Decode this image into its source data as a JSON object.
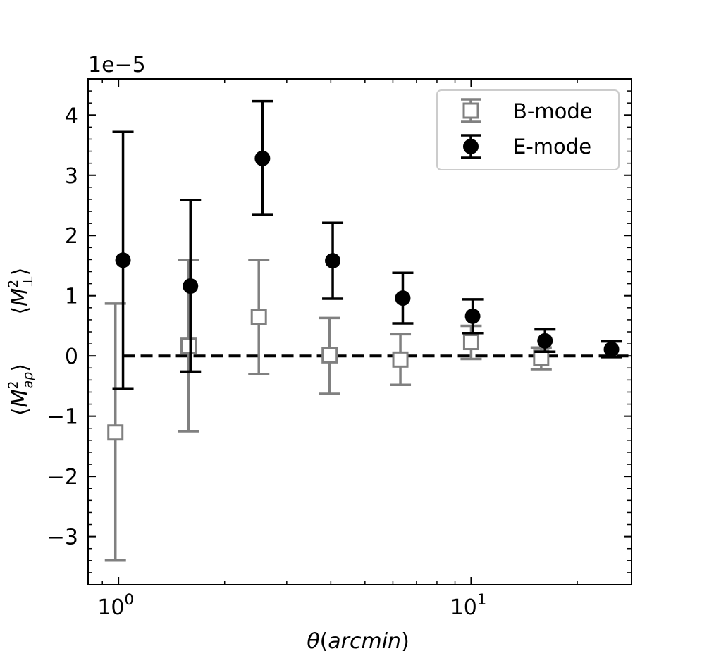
{
  "chart_data": {
    "type": "scatter",
    "title": "",
    "xlabel_main": "θ",
    "xlabel_paren": "(arcmin)",
    "ylabel_ap": "⟨M²ap⟩",
    "ylabel_perp": "⟨M²⊥⟩",
    "x_scale": "log",
    "xlim": [
      0.82,
      28.5
    ],
    "ylim": [
      -3.8,
      4.6
    ],
    "y_offset_text": "1e−5",
    "x_ticks": [
      {
        "value": 1,
        "base": "10",
        "exp": "0"
      },
      {
        "value": 10,
        "base": "10",
        "exp": "1"
      }
    ],
    "y_ticks": [
      {
        "value": -3,
        "label": "−3"
      },
      {
        "value": -2,
        "label": "−2"
      },
      {
        "value": -1,
        "label": "−1"
      },
      {
        "value": 0,
        "label": "0"
      },
      {
        "value": 1,
        "label": "1"
      },
      {
        "value": 2,
        "label": "2"
      },
      {
        "value": 3,
        "label": "3"
      },
      {
        "value": 4,
        "label": "4"
      }
    ],
    "reference_line": {
      "y": 0,
      "style": "dashed",
      "x_from": 1.03,
      "x_to": 28.5
    },
    "legend": {
      "position": "top-right"
    },
    "series": [
      {
        "name": "B-mode",
        "marker": "open-square",
        "color": "#808080",
        "x": [
          0.98,
          1.58,
          2.5,
          3.97,
          6.3,
          10.0,
          15.8
        ],
        "y": [
          -1.27,
          0.17,
          0.65,
          0.01,
          -0.06,
          0.23,
          -0.03
        ],
        "yerr_low": [
          -3.4,
          -1.25,
          -0.3,
          -0.63,
          -0.48,
          -0.05,
          -0.22
        ],
        "yerr_high": [
          0.87,
          1.59,
          1.59,
          0.63,
          0.36,
          0.5,
          0.14
        ]
      },
      {
        "name": "E-mode",
        "marker": "filled-circle",
        "color": "#000000",
        "x": [
          1.03,
          1.6,
          2.56,
          4.05,
          6.4,
          10.1,
          16.2,
          25.0
        ],
        "y": [
          1.59,
          1.16,
          3.28,
          1.58,
          0.96,
          0.66,
          0.25,
          0.11
        ],
        "yerr_low": [
          -0.55,
          -0.26,
          2.34,
          0.95,
          0.54,
          0.38,
          0.07,
          -0.02
        ],
        "yerr_high": [
          3.72,
          2.59,
          4.23,
          2.21,
          1.38,
          0.94,
          0.44,
          0.24
        ]
      }
    ]
  }
}
